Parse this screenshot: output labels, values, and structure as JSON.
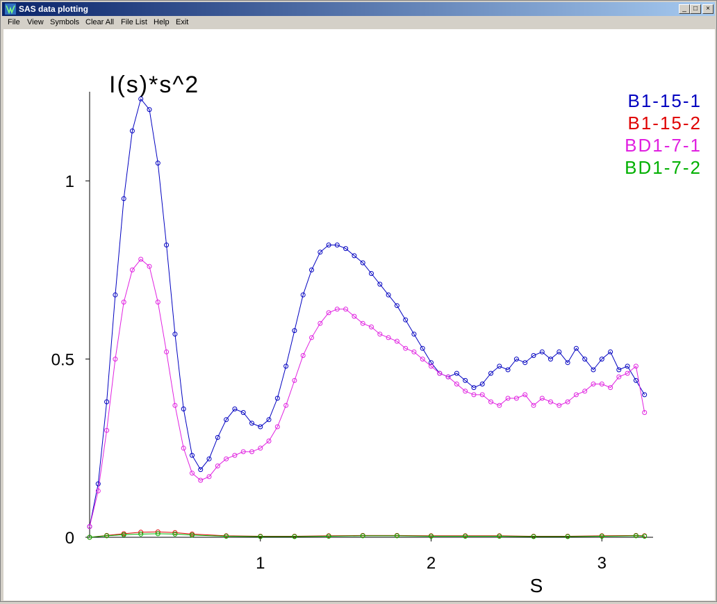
{
  "window": {
    "title": "SAS data plotting"
  },
  "menu": [
    "File",
    "View",
    "Symbols",
    "Clear All",
    "File List",
    "Help",
    "Exit"
  ],
  "colors": {
    "B1-15-1": "#0000c0",
    "B1-15-2": "#e00000",
    "BD1-7-1": "#e020e0",
    "BD1-7-2": "#00b000"
  },
  "chart_data": {
    "type": "scatter",
    "ylabel": "I(s)*s^2",
    "xlabel": "S",
    "xlim": [
      0,
      3.3
    ],
    "ylim": [
      0,
      1.25
    ],
    "xticks": [
      1,
      2,
      3
    ],
    "yticks": [
      0,
      0.5,
      1
    ],
    "ytick_labels": [
      "0",
      "0.5",
      "1"
    ],
    "xtick_labels": [
      "1",
      "2",
      "3"
    ],
    "legend_position": "top-right",
    "grid": false,
    "series": [
      {
        "name": "B1-15-1",
        "color": "#0000c0",
        "x": [
          0.0,
          0.05,
          0.1,
          0.15,
          0.2,
          0.25,
          0.3,
          0.35,
          0.4,
          0.45,
          0.5,
          0.55,
          0.6,
          0.65,
          0.7,
          0.75,
          0.8,
          0.85,
          0.9,
          0.95,
          1.0,
          1.05,
          1.1,
          1.15,
          1.2,
          1.25,
          1.3,
          1.35,
          1.4,
          1.45,
          1.5,
          1.55,
          1.6,
          1.65,
          1.7,
          1.75,
          1.8,
          1.85,
          1.9,
          1.95,
          2.0,
          2.05,
          2.1,
          2.15,
          2.2,
          2.25,
          2.3,
          2.35,
          2.4,
          2.45,
          2.5,
          2.55,
          2.6,
          2.65,
          2.7,
          2.75,
          2.8,
          2.85,
          2.9,
          2.95,
          3.0,
          3.05,
          3.1,
          3.15,
          3.2,
          3.25
        ],
        "y": [
          0.03,
          0.15,
          0.38,
          0.68,
          0.95,
          1.14,
          1.23,
          1.2,
          1.05,
          0.82,
          0.57,
          0.36,
          0.23,
          0.19,
          0.22,
          0.28,
          0.33,
          0.36,
          0.35,
          0.32,
          0.31,
          0.33,
          0.39,
          0.48,
          0.58,
          0.68,
          0.75,
          0.8,
          0.82,
          0.82,
          0.81,
          0.79,
          0.77,
          0.74,
          0.71,
          0.68,
          0.65,
          0.61,
          0.57,
          0.53,
          0.49,
          0.46,
          0.45,
          0.46,
          0.44,
          0.42,
          0.43,
          0.46,
          0.48,
          0.47,
          0.5,
          0.49,
          0.51,
          0.52,
          0.5,
          0.52,
          0.49,
          0.53,
          0.5,
          0.47,
          0.5,
          0.52,
          0.47,
          0.48,
          0.44,
          0.4
        ]
      },
      {
        "name": "B1-15-2",
        "color": "#e00000",
        "x": [
          0.0,
          0.1,
          0.2,
          0.3,
          0.4,
          0.5,
          0.6,
          0.8,
          1.0,
          1.2,
          1.4,
          1.6,
          1.8,
          2.0,
          2.2,
          2.4,
          2.6,
          2.8,
          3.0,
          3.2,
          3.25
        ],
        "y": [
          0.0,
          0.005,
          0.01,
          0.014,
          0.015,
          0.013,
          0.009,
          0.004,
          0.003,
          0.003,
          0.004,
          0.005,
          0.005,
          0.004,
          0.004,
          0.004,
          0.003,
          0.003,
          0.004,
          0.005,
          0.004
        ]
      },
      {
        "name": "BD1-7-1",
        "color": "#e020e0",
        "x": [
          0.0,
          0.05,
          0.1,
          0.15,
          0.2,
          0.25,
          0.3,
          0.35,
          0.4,
          0.45,
          0.5,
          0.55,
          0.6,
          0.65,
          0.7,
          0.75,
          0.8,
          0.85,
          0.9,
          0.95,
          1.0,
          1.05,
          1.1,
          1.15,
          1.2,
          1.25,
          1.3,
          1.35,
          1.4,
          1.45,
          1.5,
          1.55,
          1.6,
          1.65,
          1.7,
          1.75,
          1.8,
          1.85,
          1.9,
          1.95,
          2.0,
          2.05,
          2.1,
          2.15,
          2.2,
          2.25,
          2.3,
          2.35,
          2.4,
          2.45,
          2.5,
          2.55,
          2.6,
          2.65,
          2.7,
          2.75,
          2.8,
          2.85,
          2.9,
          2.95,
          3.0,
          3.05,
          3.1,
          3.15,
          3.2,
          3.25
        ],
        "y": [
          0.03,
          0.13,
          0.3,
          0.5,
          0.66,
          0.75,
          0.78,
          0.76,
          0.66,
          0.52,
          0.37,
          0.25,
          0.18,
          0.16,
          0.17,
          0.2,
          0.22,
          0.23,
          0.24,
          0.24,
          0.25,
          0.27,
          0.31,
          0.37,
          0.44,
          0.51,
          0.56,
          0.6,
          0.63,
          0.64,
          0.64,
          0.62,
          0.6,
          0.59,
          0.57,
          0.56,
          0.55,
          0.53,
          0.52,
          0.5,
          0.48,
          0.46,
          0.45,
          0.43,
          0.41,
          0.4,
          0.4,
          0.38,
          0.37,
          0.39,
          0.39,
          0.4,
          0.37,
          0.39,
          0.38,
          0.37,
          0.38,
          0.4,
          0.41,
          0.43,
          0.43,
          0.42,
          0.45,
          0.46,
          0.48,
          0.35
        ]
      },
      {
        "name": "BD1-7-2",
        "color": "#00b000",
        "x": [
          0.0,
          0.1,
          0.2,
          0.3,
          0.4,
          0.5,
          0.6,
          0.8,
          1.0,
          1.2,
          1.4,
          1.6,
          1.8,
          2.0,
          2.2,
          2.4,
          2.6,
          2.8,
          3.0,
          3.2,
          3.25
        ],
        "y": [
          0.0,
          0.004,
          0.007,
          0.009,
          0.01,
          0.009,
          0.006,
          0.003,
          0.002,
          0.002,
          0.003,
          0.004,
          0.004,
          0.003,
          0.003,
          0.003,
          0.002,
          0.002,
          0.003,
          0.004,
          0.003
        ]
      }
    ]
  }
}
